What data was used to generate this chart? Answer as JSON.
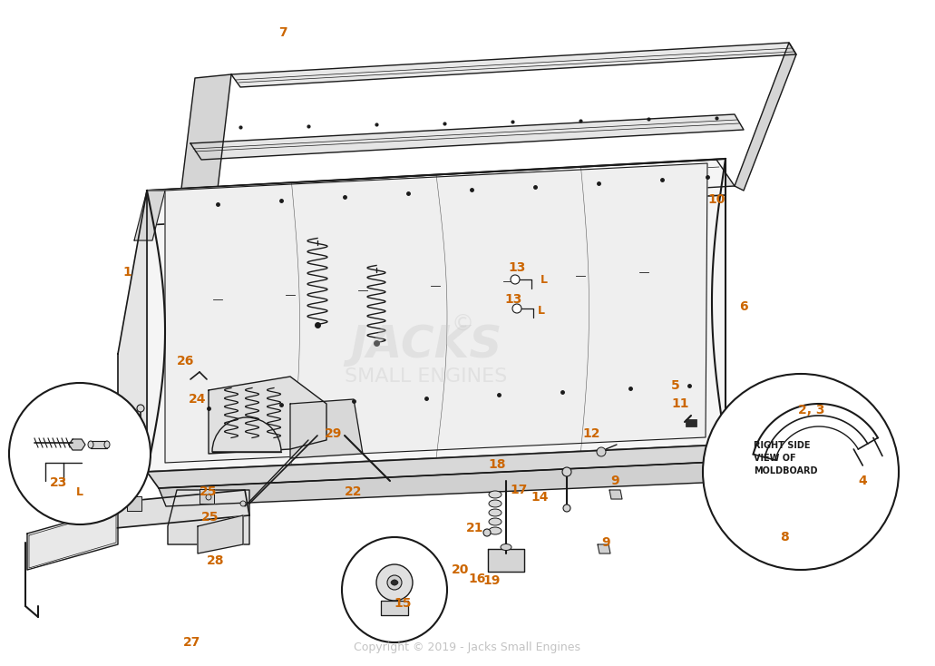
{
  "bg_color": "#ffffff",
  "line_color": "#1a1a1a",
  "label_color_dark": "#1a1a00",
  "label_color_orange": "#cc6600",
  "copyright_text": "Copyright © 2019 - Jacks Small Engines",
  "watermark_lines": [
    "JACKS",
    "SMALL ENGINES"
  ],
  "figsize": [
    10.31,
    7.34
  ],
  "dpi": 100
}
